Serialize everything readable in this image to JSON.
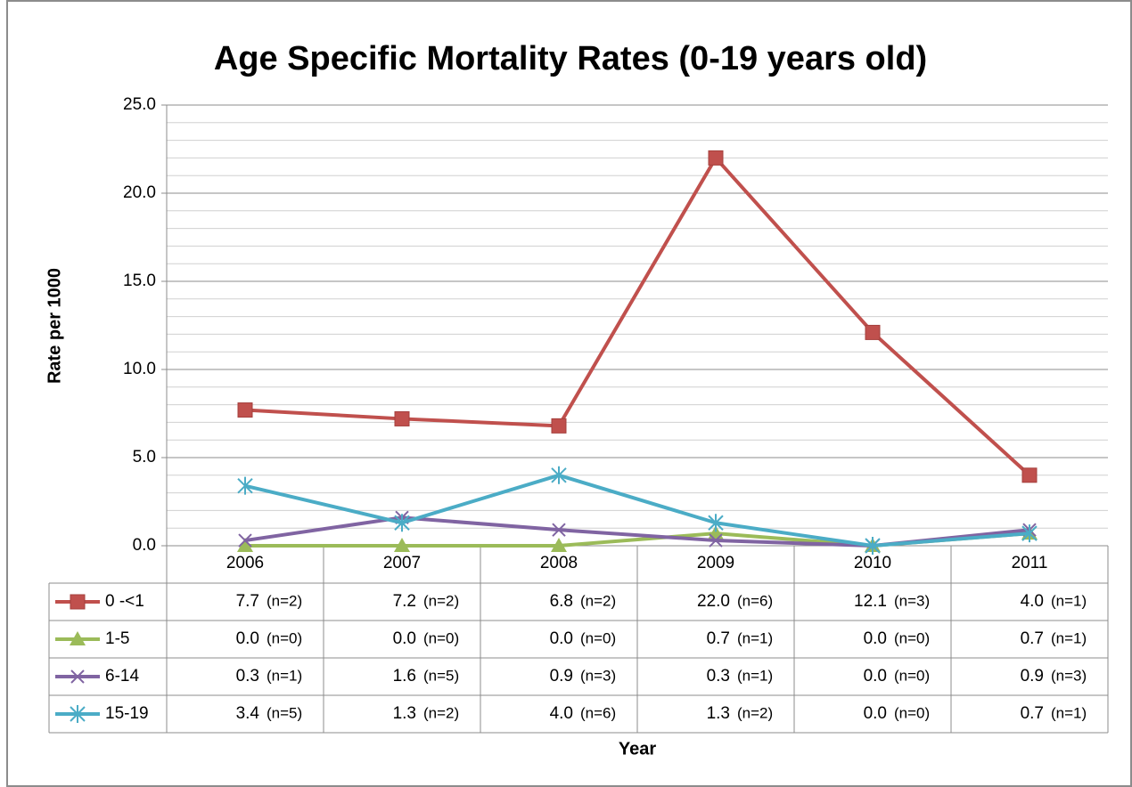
{
  "chart_data": {
    "type": "line",
    "title": "Age Specific Mortality Rates (0-19 years old)",
    "x_label": "Year",
    "y_label": "Rate per 1000",
    "categories": [
      "2006",
      "2007",
      "2008",
      "2009",
      "2010",
      "2011"
    ],
    "ylim": [
      0,
      25
    ],
    "yticks": [
      {
        "value": 0,
        "label": "0.0"
      },
      {
        "value": 5,
        "label": "5.0"
      },
      {
        "value": 10,
        "label": "10.0"
      },
      {
        "value": 15,
        "label": "15.0"
      },
      {
        "value": 20,
        "label": "20.0"
      },
      {
        "value": 25,
        "label": "25.0"
      }
    ],
    "grid": true,
    "minor_grid": true,
    "data_table": true,
    "series": [
      {
        "name": "0 -<1",
        "color": "#c0504d",
        "marker": "square",
        "values": [
          7.7,
          7.2,
          6.8,
          22.0,
          12.1,
          4.0
        ],
        "value_labels": [
          "7.7",
          "7.2",
          "6.8",
          "22.0",
          "12.1",
          "4.0"
        ],
        "n_labels": [
          "(n=2)",
          "(n=2)",
          "(n=2)",
          "(n=6)",
          "(n=3)",
          "(n=1)"
        ]
      },
      {
        "name": "1-5",
        "color": "#9bbb59",
        "marker": "triangle",
        "values": [
          0.0,
          0.0,
          0.0,
          0.7,
          0.0,
          0.7
        ],
        "value_labels": [
          "0.0",
          "0.0",
          "0.0",
          "0.7",
          "0.0",
          "0.7"
        ],
        "n_labels": [
          "(n=0)",
          "(n=0)",
          "(n=0)",
          "(n=1)",
          "(n=0)",
          "(n=1)"
        ]
      },
      {
        "name": "6-14",
        "color": "#8064a2",
        "marker": "x",
        "values": [
          0.3,
          1.6,
          0.9,
          0.3,
          0.0,
          0.9
        ],
        "value_labels": [
          "0.3",
          "1.6",
          "0.9",
          "0.3",
          "0.0",
          "0.9"
        ],
        "n_labels": [
          "(n=1)",
          "(n=5)",
          "(n=3)",
          "(n=1)",
          "(n=0)",
          "(n=3)"
        ]
      },
      {
        "name": "15-19",
        "color": "#4bacc6",
        "marker": "star",
        "values": [
          3.4,
          1.3,
          4.0,
          1.3,
          0.0,
          0.7
        ],
        "value_labels": [
          "3.4",
          "1.3",
          "4.0",
          "1.3",
          "0.0",
          "0.7"
        ],
        "n_labels": [
          "(n=5)",
          "(n=2)",
          "(n=6)",
          "(n=2)",
          "(n=0)",
          "(n=1)"
        ]
      }
    ]
  }
}
